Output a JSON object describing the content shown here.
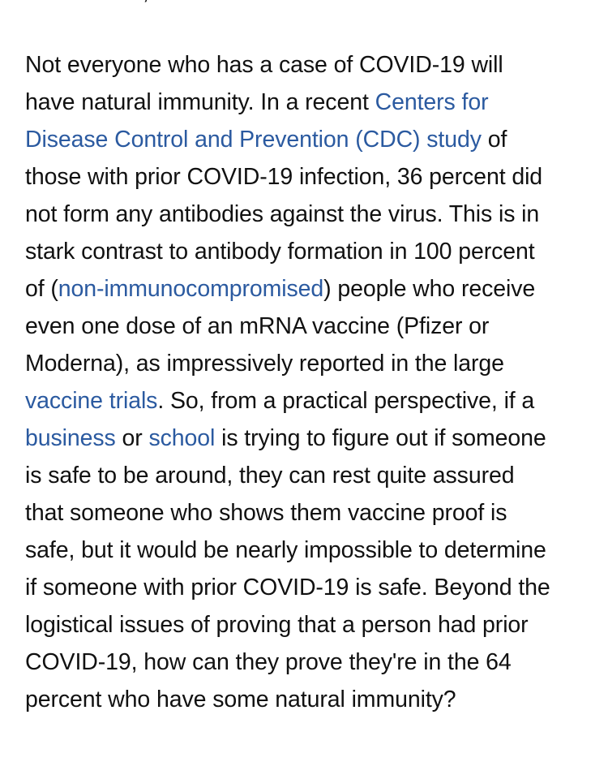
{
  "cut_off_top_text": ",",
  "paragraph": {
    "lines": [
      {
        "a": "Not everyone who has a case of COVID-19 will"
      },
      {
        "a": "have natural immunity. In a recent ",
        "link": "Centers for"
      },
      {
        "link": "Disease Control and Prevention (CDC) study",
        "b": " of"
      },
      {
        "a": "those with prior COVID-19 infection, 36 percent did"
      },
      {
        "a": "not form any antibodies against the virus. This is in"
      },
      {
        "a": "stark contrast to antibody formation in 100 percent"
      },
      {
        "a": "of (",
        "link": "non-immunocompromised",
        "b": ") people who receive"
      },
      {
        "a": "even one dose of an mRNA vaccine (Pfizer or"
      },
      {
        "a": "Moderna), as impressively reported in the large"
      },
      {
        "link": "vaccine trials",
        "b": ". So, from a practical perspective, if a"
      },
      {
        "link": "business",
        "b": " or ",
        "link2": "school",
        "c": " is trying to figure out if someone"
      },
      {
        "a": "is safe to be around, they can rest quite assured"
      },
      {
        "a": "that someone who shows them vaccine proof is"
      },
      {
        "a": "safe, but it would be nearly impossible to determine"
      },
      {
        "a": "if someone with prior COVID-19 is safe. Beyond the"
      },
      {
        "a": "logistical issues of proving that a person had prior"
      },
      {
        "a": "COVID-19, how can they prove they're in the 64"
      },
      {
        "a": "percent who have some natural immunity?"
      }
    ]
  },
  "colors": {
    "text": "#111111",
    "link": "#2b5aa0",
    "background": "#ffffff"
  }
}
